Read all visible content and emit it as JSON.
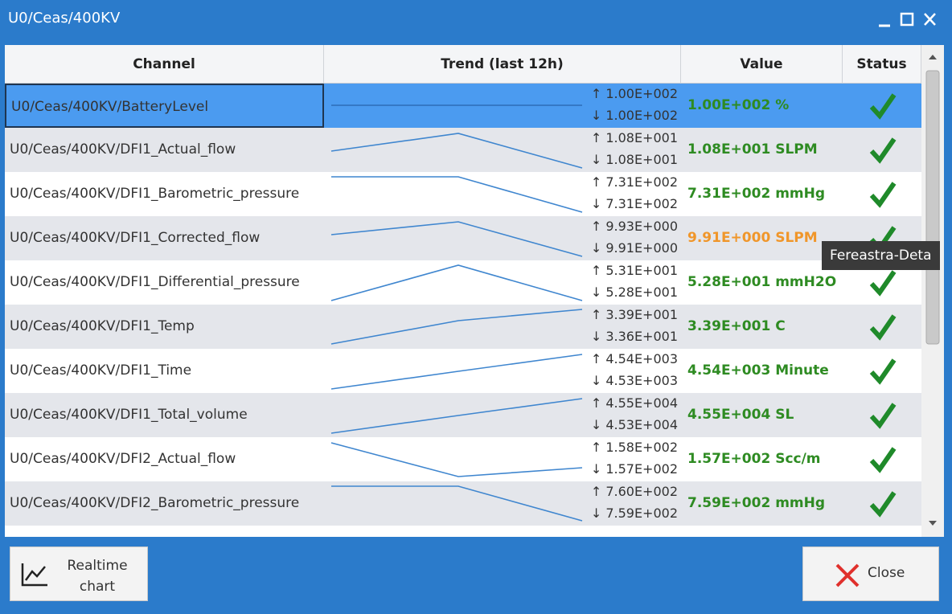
{
  "window": {
    "title": "U0/Ceas/400KV"
  },
  "table": {
    "columns": [
      "Channel",
      "Trend (last 12h)",
      "Value",
      "Status"
    ],
    "rows": [
      {
        "channel": "U0/Ceas/400KV/BatteryLevel",
        "max": "↑ 1.00E+002",
        "min": "↓ 1.00E+002",
        "value": "1.00E+002 %",
        "value_color": "#2e8b22",
        "selected": true
      },
      {
        "channel": "U0/Ceas/400KV/DFI1_Actual_flow",
        "max": "↑ 1.08E+001",
        "min": "↓ 1.08E+001",
        "value": "1.08E+001 SLPM",
        "value_color": "#2e8b22",
        "selected": false
      },
      {
        "channel": "U0/Ceas/400KV/DFI1_Barometric_pressure",
        "max": "↑ 7.31E+002",
        "min": "↓ 7.31E+002",
        "value": "7.31E+002 mmHg",
        "value_color": "#2e8b22",
        "selected": false
      },
      {
        "channel": "U0/Ceas/400KV/DFI1_Corrected_flow",
        "max": "↑ 9.93E+000",
        "min": "↓ 9.91E+000",
        "value": "9.91E+000 SLPM",
        "value_color": "#f0962a",
        "selected": false
      },
      {
        "channel": "U0/Ceas/400KV/DFI1_Differential_pressure",
        "max": "↑ 5.31E+001",
        "min": "↓ 5.28E+001",
        "value": "5.28E+001 mmH2O",
        "value_color": "#2e8b22",
        "selected": false
      },
      {
        "channel": "U0/Ceas/400KV/DFI1_Temp",
        "max": "↑ 3.39E+001",
        "min": "↓ 3.36E+001",
        "value": "3.39E+001 C",
        "value_color": "#2e8b22",
        "selected": false
      },
      {
        "channel": "U0/Ceas/400KV/DFI1_Time",
        "max": "↑ 4.54E+003",
        "min": "↓ 4.53E+003",
        "value": "4.54E+003 Minute",
        "value_color": "#2e8b22",
        "selected": false
      },
      {
        "channel": "U0/Ceas/400KV/DFI1_Total_volume",
        "max": "↑ 4.55E+004",
        "min": "↓ 4.53E+004",
        "value": "4.55E+004 SL",
        "value_color": "#2e8b22",
        "selected": false
      },
      {
        "channel": "U0/Ceas/400KV/DFI2_Actual_flow",
        "max": "↑ 1.58E+002",
        "min": "↓ 1.57E+002",
        "value": "1.57E+002 Scc/m",
        "value_color": "#2e8b22",
        "selected": false
      },
      {
        "channel": "U0/Ceas/400KV/DFI2_Barometric_pressure",
        "max": "↑ 7.60E+002",
        "min": "↓ 7.59E+002",
        "value": "7.59E+002 mmHg",
        "value_color": "#2e8b22",
        "selected": false
      }
    ]
  },
  "tooltip": "Fereastra-Deta",
  "buttons": [
    "Realtime chart",
    "Close"
  ]
}
